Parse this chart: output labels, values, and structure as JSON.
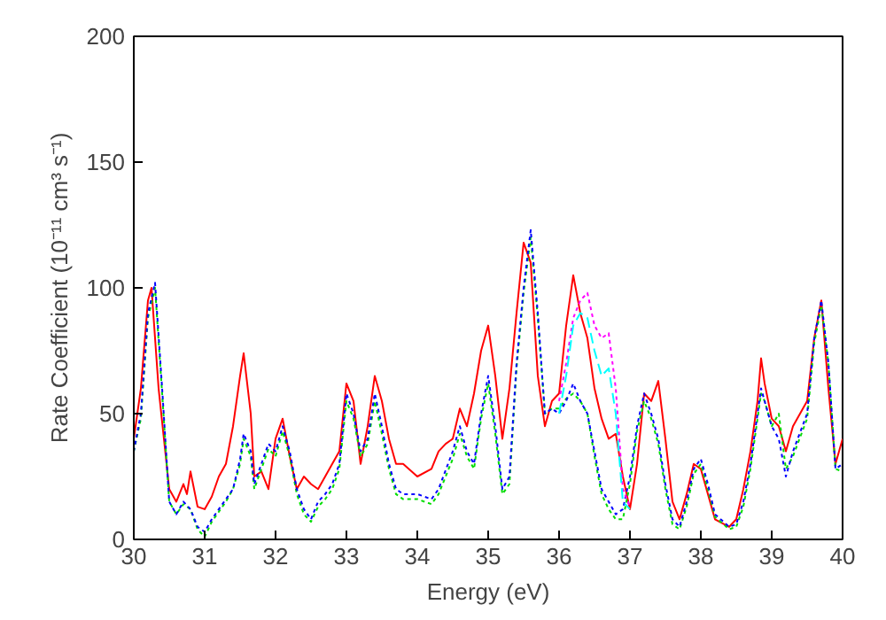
{
  "chart_data": {
    "type": "line",
    "xlabel": "Energy (eV)",
    "ylabel": "Rate Coefficient (10⁻¹¹ cm³ s⁻¹)",
    "xlim": [
      30,
      40
    ],
    "ylim": [
      0,
      200
    ],
    "xticks": [
      30,
      31,
      32,
      33,
      34,
      35,
      36,
      37,
      38,
      39,
      40
    ],
    "yticks": [
      0,
      50,
      100,
      150,
      200
    ],
    "grid": false,
    "marker": "none",
    "series": [
      {
        "color": "#ff0000",
        "line_style": "solid",
        "x": [
          30.0,
          30.1,
          30.2,
          30.25,
          30.35,
          30.5,
          30.6,
          30.7,
          30.75,
          30.8,
          30.9,
          31.0,
          31.1,
          31.2,
          31.3,
          31.4,
          31.5,
          31.55,
          31.65,
          31.7,
          31.8,
          31.9,
          32.0,
          32.1,
          32.2,
          32.3,
          32.4,
          32.5,
          32.6,
          32.8,
          32.9,
          33.0,
          33.1,
          33.2,
          33.3,
          33.4,
          33.5,
          33.6,
          33.7,
          33.8,
          34.0,
          34.2,
          34.3,
          34.4,
          34.5,
          34.6,
          34.7,
          34.8,
          34.9,
          35.0,
          35.1,
          35.2,
          35.3,
          35.4,
          35.5,
          35.6,
          35.7,
          35.8,
          35.9,
          36.0,
          36.1,
          36.2,
          36.3,
          36.4,
          36.5,
          36.6,
          36.7,
          36.8,
          36.9,
          37.0,
          37.1,
          37.2,
          37.3,
          37.4,
          37.5,
          37.6,
          37.7,
          37.8,
          37.9,
          38.0,
          38.1,
          38.2,
          38.4,
          38.5,
          38.6,
          38.7,
          38.8,
          38.85,
          38.9,
          39.0,
          39.1,
          39.2,
          39.3,
          39.5,
          39.6,
          39.7,
          39.8,
          39.9,
          40.0
        ],
        "values": [
          40,
          60,
          95,
          100,
          60,
          20,
          15,
          22,
          18,
          27,
          13,
          12,
          17,
          25,
          30,
          45,
          65,
          74,
          50,
          25,
          27,
          20,
          40,
          48,
          33,
          20,
          25,
          22,
          20,
          30,
          35,
          62,
          55,
          30,
          45,
          65,
          55,
          40,
          30,
          30,
          25,
          28,
          35,
          38,
          40,
          52,
          45,
          58,
          75,
          85,
          65,
          40,
          60,
          90,
          118,
          110,
          65,
          45,
          55,
          58,
          85,
          105,
          90,
          80,
          60,
          48,
          40,
          42,
          25,
          12,
          30,
          58,
          55,
          63,
          40,
          15,
          8,
          18,
          30,
          28,
          18,
          8,
          5,
          8,
          20,
          35,
          55,
          72,
          62,
          48,
          45,
          35,
          45,
          55,
          80,
          95,
          60,
          30,
          40
        ]
      },
      {
        "color": "#00dd00",
        "line_style": "dotted",
        "x": [
          30.0,
          30.1,
          30.2,
          30.3,
          30.4,
          30.5,
          30.6,
          30.7,
          30.8,
          30.9,
          31.0,
          31.1,
          31.2,
          31.3,
          31.4,
          31.5,
          31.55,
          31.65,
          31.7,
          31.8,
          31.9,
          32.0,
          32.1,
          32.2,
          32.3,
          32.4,
          32.5,
          32.6,
          32.7,
          32.8,
          32.9,
          33.0,
          33.1,
          33.2,
          33.3,
          33.4,
          33.5,
          33.6,
          33.7,
          33.8,
          34.0,
          34.2,
          34.3,
          34.5,
          34.6,
          34.7,
          34.8,
          34.9,
          35.0,
          35.1,
          35.2,
          35.3,
          35.4,
          35.5,
          35.6,
          35.7,
          35.8,
          35.9,
          36.0,
          36.1,
          36.2,
          36.3,
          36.4,
          36.5,
          36.6,
          36.7,
          36.8,
          36.9,
          37.0,
          37.1,
          37.2,
          37.3,
          37.4,
          37.5,
          37.6,
          37.7,
          37.8,
          37.9,
          38.0,
          38.1,
          38.2,
          38.4,
          38.5,
          38.6,
          38.7,
          38.8,
          38.85,
          38.9,
          39.0,
          39.1,
          39.2,
          39.3,
          39.5,
          39.6,
          39.7,
          39.8,
          39.9,
          40.0
        ],
        "values": [
          35,
          48,
          88,
          100,
          58,
          15,
          10,
          14,
          12,
          4,
          1,
          7,
          11,
          15,
          20,
          30,
          40,
          33,
          20,
          28,
          36,
          33,
          43,
          33,
          18,
          10,
          7,
          13,
          16,
          20,
          28,
          55,
          48,
          33,
          38,
          55,
          42,
          28,
          18,
          16,
          16,
          14,
          18,
          32,
          42,
          33,
          28,
          48,
          62,
          42,
          18,
          22,
          68,
          98,
          120,
          88,
          50,
          52,
          52,
          56,
          58,
          55,
          50,
          33,
          18,
          12,
          8,
          8,
          22,
          43,
          55,
          48,
          38,
          20,
          6,
          4,
          13,
          26,
          30,
          20,
          9,
          4,
          5,
          13,
          28,
          48,
          58,
          55,
          45,
          50,
          28,
          33,
          48,
          78,
          93,
          70,
          28,
          27
        ]
      },
      {
        "color": "#0000ff",
        "line_style": "dotted",
        "x": [
          30.0,
          30.1,
          30.2,
          30.3,
          30.4,
          30.5,
          30.6,
          30.7,
          30.8,
          30.9,
          31.0,
          31.1,
          31.2,
          31.3,
          31.4,
          31.5,
          31.55,
          31.65,
          31.7,
          31.8,
          31.9,
          32.0,
          32.1,
          32.2,
          32.3,
          32.4,
          32.5,
          32.6,
          32.7,
          32.8,
          32.9,
          33.0,
          33.1,
          33.2,
          33.3,
          33.4,
          33.5,
          33.6,
          33.7,
          33.8,
          34.0,
          34.2,
          34.3,
          34.5,
          34.6,
          34.7,
          34.8,
          34.9,
          35.0,
          35.1,
          35.2,
          35.3,
          35.4,
          35.5,
          35.6,
          35.7,
          35.8,
          35.9,
          36.0,
          36.1,
          36.2,
          36.3,
          36.4,
          36.5,
          36.6,
          36.7,
          36.8,
          36.9,
          37.0,
          37.1,
          37.2,
          37.3,
          37.4,
          37.5,
          37.6,
          37.7,
          37.8,
          37.9,
          38.0,
          38.1,
          38.2,
          38.4,
          38.5,
          38.6,
          38.7,
          38.8,
          38.85,
          38.9,
          39.0,
          39.1,
          39.2,
          39.3,
          39.5,
          39.6,
          39.7,
          39.8,
          39.9,
          40.0
        ],
        "values": [
          35,
          50,
          90,
          102,
          60,
          15,
          10,
          15,
          12,
          5,
          3,
          8,
          12,
          16,
          20,
          32,
          42,
          35,
          22,
          30,
          38,
          35,
          45,
          35,
          20,
          12,
          8,
          15,
          18,
          22,
          30,
          58,
          50,
          35,
          40,
          58,
          45,
          30,
          20,
          18,
          18,
          16,
          20,
          35,
          45,
          35,
          30,
          50,
          65,
          45,
          20,
          25,
          70,
          100,
          123,
          90,
          50,
          52,
          50,
          55,
          62,
          55,
          50,
          35,
          20,
          15,
          10,
          12,
          25,
          45,
          58,
          50,
          40,
          22,
          8,
          5,
          15,
          28,
          32,
          22,
          10,
          5,
          6,
          15,
          30,
          50,
          60,
          55,
          45,
          40,
          25,
          35,
          50,
          80,
          95,
          70,
          28,
          30
        ]
      },
      {
        "color": "#ff00ff",
        "line_style": "dotted",
        "x": [
          36.0,
          36.1,
          36.2,
          36.3,
          36.4,
          36.5,
          36.6,
          36.7,
          36.8,
          36.9,
          37.0
        ],
        "values": [
          55,
          70,
          88,
          95,
          98,
          85,
          80,
          82,
          60,
          20,
          13
        ]
      },
      {
        "color": "#00ffff",
        "line_style": "dashed",
        "x": [
          36.0,
          36.1,
          36.2,
          36.3,
          36.4,
          36.5,
          36.6,
          36.7,
          36.8,
          36.9,
          37.0
        ],
        "values": [
          50,
          65,
          85,
          90,
          88,
          75,
          65,
          68,
          50,
          15,
          12
        ]
      }
    ]
  }
}
